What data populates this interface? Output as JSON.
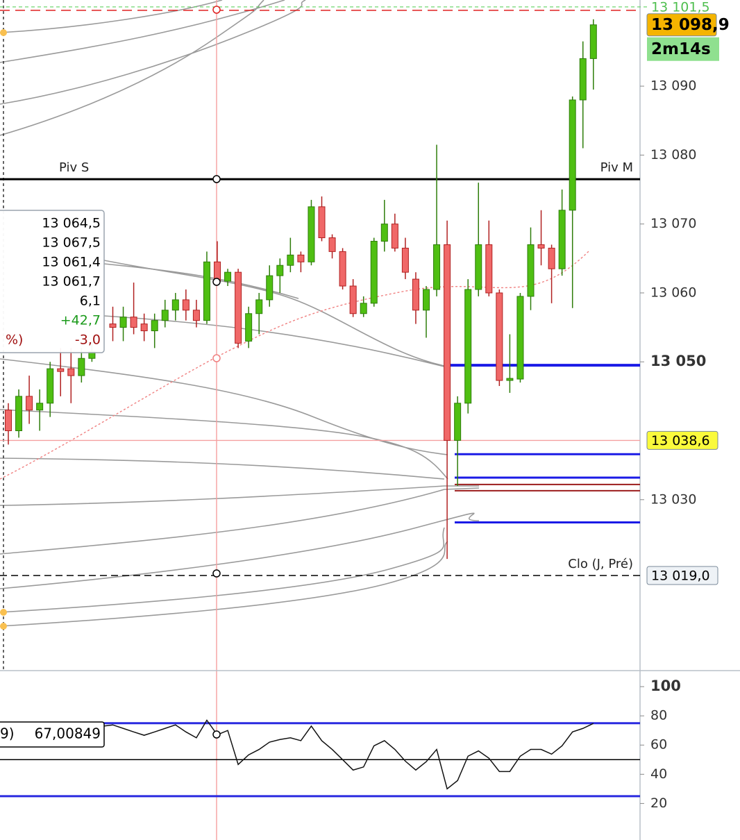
{
  "chart_data": {
    "type": "candlestick",
    "ylim": [
      13005.3,
      13102.5
    ],
    "yticks": [
      {
        "value": 13090,
        "label": "13 090"
      },
      {
        "value": 13080,
        "label": "13 080"
      },
      {
        "value": 13070,
        "label": "13 070"
      },
      {
        "value": 13060,
        "label": "13 060"
      },
      {
        "value": 13050,
        "label": "13 050"
      },
      {
        "value": 13030,
        "label": "13 030"
      }
    ],
    "major_ytick": 13050,
    "up_color": "#4fbf12",
    "down_color": "#f06868",
    "candles": {
      "open": [
        13043,
        13040,
        13045,
        13043,
        13044,
        13049,
        13049,
        13048,
        13050.5,
        null,
        13055.5,
        13055,
        13056.5,
        13055.5,
        13054.5,
        13056,
        13057.5,
        13059,
        13057.5,
        13056,
        13064.5,
        13061.7,
        13063,
        13053,
        13057,
        13059,
        13062.5,
        13064,
        13065.5,
        13064.5,
        13072.5,
        13068,
        13066,
        13061,
        13057,
        13058.5,
        13067.5,
        13070,
        13066.5,
        13062,
        13057.5,
        13060.5,
        13067,
        13038.6,
        13044,
        13060.5,
        13067,
        13060,
        13047.3,
        13047.5,
        13059.5,
        13067,
        13066.5,
        13063.5,
        13072,
        13088,
        13094
      ],
      "high": [
        13044,
        13046,
        13048,
        13046,
        13050,
        13052,
        13052,
        13052,
        13053,
        null,
        13058,
        13058,
        13061.5,
        13057,
        13057,
        13059,
        13060,
        13060.5,
        13059,
        13066,
        13067.5,
        13063.5,
        13063.5,
        13058,
        13060,
        13064,
        13065,
        13068,
        13066,
        13073.5,
        13074,
        13068.5,
        13066.5,
        13062,
        13059.5,
        13068,
        13073.5,
        13071.5,
        13068,
        13063,
        13061,
        13081.5,
        13070.5,
        13045,
        13062,
        13076,
        13070.5,
        13060.5,
        13054,
        13060,
        13069.5,
        13072,
        13067,
        13075,
        13088.5,
        13096.5,
        13099.7
      ],
      "low": [
        13038,
        13039,
        13041,
        13040,
        13042,
        13045,
        13044,
        13047,
        13050,
        null,
        13053,
        13053,
        13054,
        13053,
        13052,
        13055,
        13056,
        13056,
        13055,
        13055.5,
        13061.4,
        13061,
        13052,
        13052,
        13054,
        13058,
        13060,
        13063,
        13063,
        13064,
        13067.5,
        13065,
        13060.5,
        13056.5,
        13056.5,
        13058,
        13066,
        13066,
        13062,
        13055.5,
        13053.5,
        13059.5,
        13021.4,
        13032,
        13042.5,
        13059.5,
        13059.5,
        13046.5,
        13045.5,
        13047,
        13057.5,
        13064,
        13058.5,
        13062.5,
        13057.8,
        13081,
        13089.5
      ],
      "close": [
        13040,
        13045,
        13043,
        13044,
        13049,
        13048.6,
        13048,
        13050.5,
        13051.5,
        null,
        13055,
        13056.5,
        13055,
        13054.5,
        13056,
        13057.5,
        13059,
        13057.5,
        13056,
        13064.5,
        13061.7,
        13063,
        13052.7,
        13057,
        13059,
        13062.5,
        13064,
        13065.5,
        13064.5,
        13072.5,
        13068,
        13066,
        13061,
        13057,
        13058.5,
        13067.5,
        13070,
        13066.5,
        13063,
        13057.5,
        13060.5,
        13067,
        13038.6,
        13044,
        13060.5,
        13067,
        13060,
        13047.3,
        13047.6,
        13059.5,
        13067,
        13066.5,
        13063.5,
        13072,
        13088,
        13094,
        13098.9
      ]
    },
    "levels": [
      {
        "value": 13076.5,
        "label": "Piv S",
        "color": "#000000"
      },
      {
        "value": 13076.5,
        "label": "Piv M",
        "color": "#000000"
      },
      {
        "value": 13049.5,
        "color": "#1a1ae6"
      },
      {
        "value": 13036.6,
        "color": "#1a1ae6"
      },
      {
        "value": 13033.2,
        "color": "#1a1ae6"
      },
      {
        "value": 13032.2,
        "color": "#9b1c1c"
      },
      {
        "value": 13031.3,
        "color": "#9b1c1c"
      },
      {
        "value": 13026.7,
        "color": "#1a1ae6"
      },
      {
        "value": 13019.0,
        "label": "Clo (J, Pré)",
        "color": "#000000"
      },
      {
        "value": 13101.0,
        "color": "#e02020"
      }
    ],
    "price_tags": [
      {
        "value": 13101.5,
        "label": "13 101,5",
        "color": "#ffffff",
        "text_color": "#4fbf4f"
      },
      {
        "value": 13098.9,
        "label": "13 098,9",
        "color": "#f5b400",
        "text_color": "#000000"
      },
      {
        "value": 13038.6,
        "label": "13 038,6",
        "color": "#fafa3c",
        "text_color": "#000000"
      },
      {
        "value": 13019.0,
        "label": "13 019,0",
        "color": "#eef2f6",
        "text_color": "#000000"
      }
    ],
    "countdown": "2m14s",
    "tooltip": [
      "13 064,5",
      "13 067,5",
      "13 061,4",
      "13 061,7",
      "6,1",
      "+42,7",
      "-3,0"
    ],
    "tooltip_suffix": "%)",
    "rsi": {
      "label": "9)",
      "value_label": "67,00849",
      "ylim": [
        -5,
        110.5
      ],
      "yticks": [
        100,
        80,
        60,
        40,
        20
      ],
      "major_ytick": 100,
      "levels": [
        75,
        50,
        25
      ],
      "values": [
        null,
        null,
        null,
        null,
        null,
        null,
        null,
        null,
        null,
        72.9,
        73.8,
        71.4,
        69,
        66.7,
        69,
        71.4,
        73.8,
        69,
        65,
        77,
        67.00849,
        70,
        46.7,
        53.3,
        57,
        62,
        63.8,
        65,
        63,
        73,
        63,
        57,
        50,
        42.9,
        45,
        59.5,
        63,
        57,
        49,
        42.9,
        48.6,
        57,
        30,
        35.7,
        52.4,
        56,
        51,
        41.9,
        41.9,
        52.4,
        57,
        57,
        53.8,
        59.5,
        69,
        71.4,
        74.8
      ]
    }
  }
}
